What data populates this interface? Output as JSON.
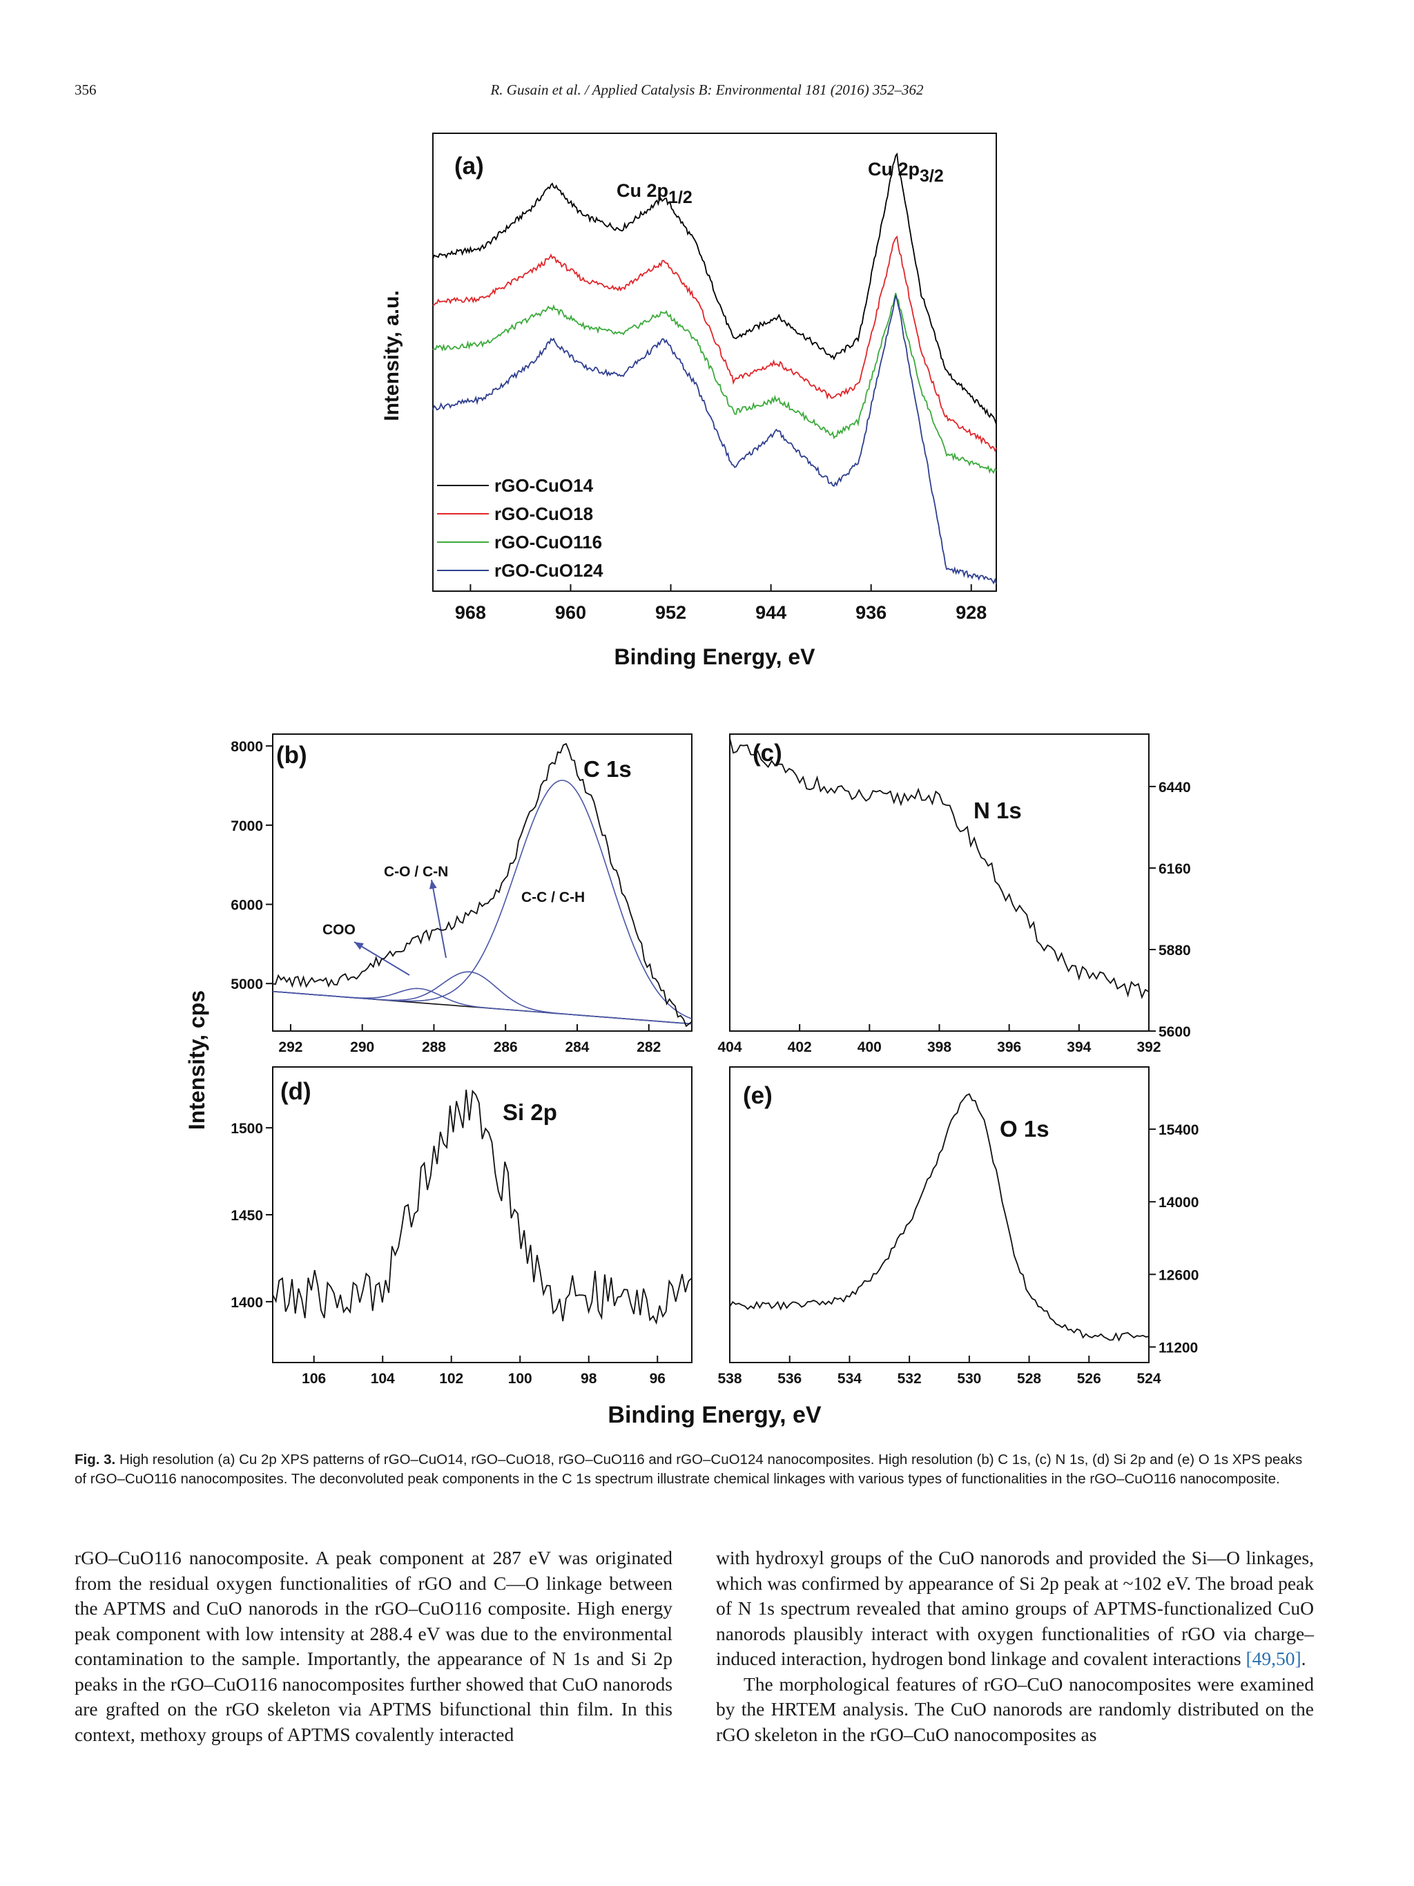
{
  "header": {
    "page_number": "356",
    "running_head": "R. Gusain et al. / Applied Catalysis B: Environmental 181 (2016) 352–362"
  },
  "figure": {
    "shared_ylabel": "Intensity, cps",
    "shared_xlabel": "Binding Energy, eV",
    "series_colors": {
      "rGO-CuO14": "#000000",
      "rGO-CuO18": "#e0262a",
      "rGO-CuO116": "#3caa3c",
      "rGO-CuO124": "#2f3f8f"
    },
    "fit_color": "#4a56a6"
  },
  "chart_data": [
    {
      "panel": "(a)",
      "type": "line",
      "xlabel": "Binding Energy, eV",
      "ylabel": "Intensity, a.u.",
      "xlim": [
        971,
        926
      ],
      "x_reversed": true,
      "x_ticks": [
        968,
        960,
        952,
        944,
        936,
        928
      ],
      "annotations": [
        "Cu 2p1/2",
        "Cu 2p3/2"
      ],
      "legend_position": "bottom-left",
      "series": [
        {
          "name": "rGO-CuO14",
          "x": [
            971,
            967,
            963,
            961.5,
            959,
            956,
            952.5,
            950,
            947,
            943.5,
            939,
            937,
            934,
            932,
            930,
            926
          ],
          "y": [
            0.73,
            0.75,
            0.84,
            0.89,
            0.82,
            0.79,
            0.86,
            0.76,
            0.55,
            0.6,
            0.51,
            0.55,
            0.96,
            0.65,
            0.48,
            0.37
          ]
        },
        {
          "name": "rGO-CuO18",
          "x": [
            971,
            967,
            963,
            961.5,
            959,
            956,
            952.5,
            950,
            947,
            943.5,
            939,
            937,
            934,
            932,
            930,
            926
          ],
          "y": [
            0.63,
            0.64,
            0.7,
            0.73,
            0.68,
            0.66,
            0.72,
            0.64,
            0.46,
            0.5,
            0.42,
            0.45,
            0.78,
            0.52,
            0.38,
            0.31
          ]
        },
        {
          "name": "rGO-CuO116",
          "x": [
            971,
            967,
            963,
            961.5,
            959,
            956,
            952.5,
            950,
            947,
            943.5,
            939,
            937,
            934,
            932,
            930,
            926
          ],
          "y": [
            0.53,
            0.54,
            0.6,
            0.62,
            0.58,
            0.56,
            0.61,
            0.55,
            0.39,
            0.42,
            0.34,
            0.37,
            0.65,
            0.44,
            0.3,
            0.26
          ]
        },
        {
          "name": "rGO-CuO124",
          "x": [
            971,
            967,
            963,
            961.5,
            959,
            956,
            952.5,
            950,
            947,
            943.5,
            939,
            937,
            934,
            932,
            930,
            926
          ],
          "y": [
            0.4,
            0.42,
            0.5,
            0.55,
            0.49,
            0.47,
            0.55,
            0.45,
            0.27,
            0.35,
            0.23,
            0.28,
            0.65,
            0.35,
            0.05,
            0.02
          ]
        }
      ]
    },
    {
      "panel": "(b)",
      "type": "line",
      "title": "C 1s",
      "xlim": [
        292.5,
        280.8
      ],
      "ylim": [
        4400,
        8150
      ],
      "x_reversed": true,
      "x_ticks": [
        292,
        290,
        288,
        286,
        284,
        282
      ],
      "y_ticks": [
        5000,
        6000,
        7000,
        8000
      ],
      "annotations": [
        "COO",
        "C-O / C-N",
        "C-C / C-H"
      ],
      "series": [
        {
          "name": "",
          "x": [
            292.5,
            291,
            290,
            289,
            288,
            287.5,
            287,
            286,
            285.5,
            285,
            284.5,
            284.3,
            284,
            283.5,
            283,
            282,
            281.5,
            281
          ],
          "y": [
            5050,
            5000,
            5150,
            5450,
            5650,
            5750,
            5850,
            6300,
            6900,
            7500,
            7950,
            8000,
            7700,
            7200,
            6500,
            5200,
            4800,
            4500
          ]
        }
      ]
    },
    {
      "panel": "(c)",
      "type": "line",
      "title": "N 1s",
      "xlim": [
        404,
        392
      ],
      "ylim": [
        5600,
        6620
      ],
      "x_reversed": true,
      "x_ticks": [
        404,
        402,
        400,
        398,
        396,
        394,
        392
      ],
      "y_ticks": [
        5600,
        5880,
        6160,
        6440
      ],
      "y_axis_side": "right",
      "series": [
        {
          "name": "",
          "x": [
            404,
            403,
            402,
            401,
            400,
            399,
            398.5,
            398,
            397,
            396,
            395,
            394,
            393,
            392
          ],
          "y": [
            6590,
            6520,
            6470,
            6420,
            6400,
            6400,
            6420,
            6390,
            6250,
            6050,
            5900,
            5800,
            5760,
            5730
          ]
        }
      ]
    },
    {
      "panel": "(d)",
      "type": "line",
      "title": "Si 2p",
      "xlim": [
        107.2,
        95
      ],
      "ylim": [
        1365,
        1535
      ],
      "x_reversed": true,
      "x_ticks": [
        106,
        104,
        102,
        100,
        98,
        96
      ],
      "y_ticks": [
        1400,
        1450,
        1500
      ],
      "series": [
        {
          "name": "",
          "x": [
            107,
            106,
            105,
            104,
            103,
            102.5,
            102,
            101.5,
            101,
            100.5,
            100,
            99,
            98,
            97,
            96,
            95
          ],
          "y": [
            1400,
            1405,
            1400,
            1410,
            1460,
            1490,
            1505,
            1515,
            1495,
            1470,
            1440,
            1400,
            1405,
            1400,
            1400,
            1405
          ]
        }
      ]
    },
    {
      "panel": "(e)",
      "type": "line",
      "title": "O 1s",
      "xlim": [
        538,
        524
      ],
      "ylim": [
        10900,
        16600
      ],
      "x_reversed": true,
      "x_ticks": [
        538,
        536,
        534,
        532,
        530,
        528,
        526,
        524
      ],
      "y_ticks": [
        11200,
        12600,
        14000,
        15400
      ],
      "y_axis_side": "right",
      "series": [
        {
          "name": "",
          "x": [
            538,
            536,
            535,
            534,
            533,
            532,
            531,
            530.5,
            530,
            529.5,
            529,
            528.5,
            528,
            527,
            526,
            525,
            524
          ],
          "y": [
            12000,
            12000,
            12050,
            12150,
            12700,
            13600,
            14900,
            15700,
            16100,
            15600,
            14300,
            13000,
            12200,
            11600,
            11400,
            11400,
            11450
          ]
        }
      ]
    }
  ],
  "caption": {
    "label": "Fig. 3.",
    "text": "High resolution (a) Cu 2p XPS patterns of rGO–CuO14, rGO–CuO18, rGO–CuO116 and rGO–CuO124 nanocomposites. High resolution (b) C 1s, (c) N 1s, (d) Si 2p and (e) O 1s XPS peaks of rGO–CuO116 nanocomposites. The deconvoluted peak components in the C 1s spectrum illustrate chemical linkages with various types of functionalities in the rGO–CuO116 nanocomposite."
  },
  "body": {
    "left_column": "rGO–CuO116 nanocomposite. A peak component at 287 eV was originated from the residual oxygen functionalities of rGO and C—O linkage between the APTMS and CuO nanorods in the rGO–CuO116 composite. High energy peak component with low intensity at 288.4 eV was due to the environmental contamination to the sample. Importantly, the appearance of N 1s and Si 2p peaks in the rGO–CuO116 nanocomposites further showed that CuO nanorods are grafted on the rGO skeleton via APTMS bifunctional thin film. In this context, methoxy groups of APTMS covalently interacted",
    "right_para1_a": "with hydroxyl groups of the CuO nanorods and provided the Si—O linkages, which was confirmed by appearance of Si 2p peak at ~102 eV. The broad peak of N 1s spectrum revealed that amino groups of APTMS-functionalized CuO nanorods plausibly interact with oxygen functionalities of rGO via charge–induced interaction, hydrogen bond linkage and covalent interactions ",
    "right_para1_ref": "[49,50]",
    "right_para1_end": ".",
    "right_para2": "The morphological features of rGO–CuO nanocomposites were examined by the HRTEM analysis. The CuO nanorods are randomly distributed on the rGO skeleton in the rGO–CuO nanocomposites as"
  }
}
